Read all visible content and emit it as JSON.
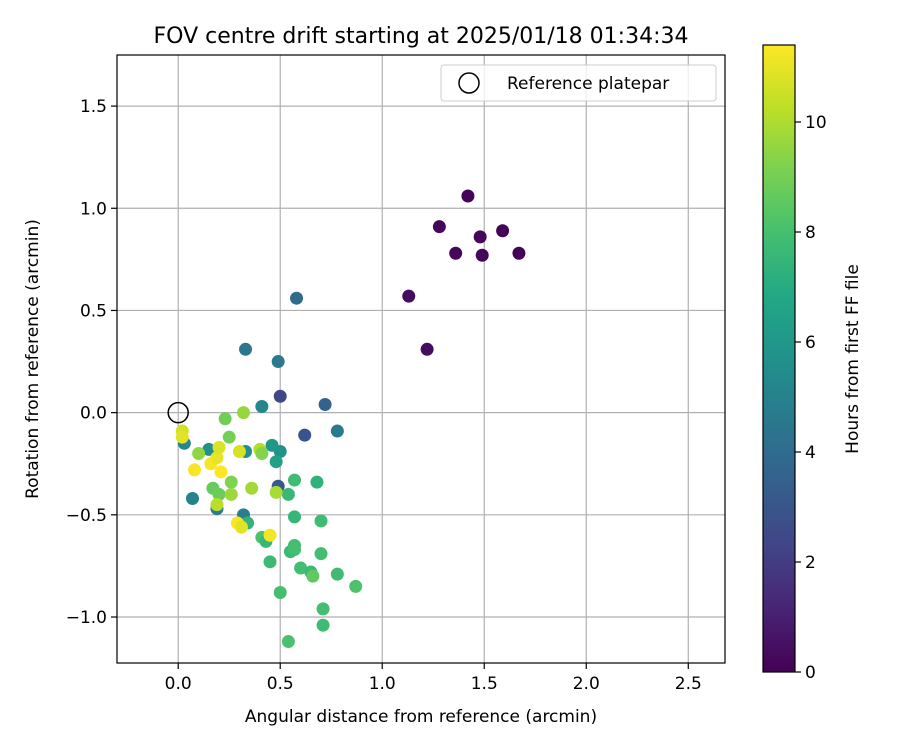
{
  "chart_data": {
    "type": "scatter",
    "title": "FOV centre drift starting at 2025/01/18 01:34:34",
    "xlabel": "Angular distance from reference (arcmin)",
    "ylabel": "Rotation from reference (arcmin)",
    "xlim": [
      -0.3,
      2.68
    ],
    "ylim": [
      -1.225,
      1.75
    ],
    "xticks": [
      0.0,
      0.5,
      1.0,
      1.5,
      2.0,
      2.5
    ],
    "xtick_labels": [
      "0.0",
      "0.5",
      "1.0",
      "1.5",
      "2.0",
      "2.5"
    ],
    "yticks": [
      -1.0,
      -0.5,
      0.0,
      0.5,
      1.0,
      1.5
    ],
    "ytick_labels": [
      "−1.0",
      "−0.5",
      "0.0",
      "0.5",
      "1.0",
      "1.5"
    ],
    "grid": true,
    "legend": {
      "placement": "upper right",
      "entries": [
        "Reference platepar"
      ]
    },
    "reference_point": {
      "x": 0.0,
      "y": 0.0
    },
    "colorbar": {
      "label": "Hours from first FF file",
      "colormap": "viridis",
      "range": [
        0,
        11.4
      ],
      "ticks": [
        0,
        2,
        4,
        6,
        8,
        10
      ],
      "tick_labels": [
        "0",
        "2",
        "4",
        "6",
        "8",
        "10"
      ]
    },
    "points": [
      {
        "x": 1.42,
        "y": 1.06,
        "h": 0.1
      },
      {
        "x": 1.28,
        "y": 0.91,
        "h": 0.2
      },
      {
        "x": 1.48,
        "y": 0.86,
        "h": 0.2
      },
      {
        "x": 1.59,
        "y": 0.89,
        "h": 0.1
      },
      {
        "x": 1.36,
        "y": 0.78,
        "h": 0.2
      },
      {
        "x": 1.49,
        "y": 0.77,
        "h": 0.2
      },
      {
        "x": 1.67,
        "y": 0.78,
        "h": 0.1
      },
      {
        "x": 1.13,
        "y": 0.57,
        "h": 0.4
      },
      {
        "x": 1.22,
        "y": 0.31,
        "h": 0.4
      },
      {
        "x": 0.58,
        "y": 0.56,
        "h": 3.9
      },
      {
        "x": 0.33,
        "y": 0.31,
        "h": 4.5
      },
      {
        "x": 0.49,
        "y": 0.25,
        "h": 4.6
      },
      {
        "x": 0.5,
        "y": 0.08,
        "h": 2.5
      },
      {
        "x": 0.41,
        "y": 0.03,
        "h": 5.2
      },
      {
        "x": 0.72,
        "y": 0.04,
        "h": 3.6
      },
      {
        "x": 0.62,
        "y": -0.11,
        "h": 2.9
      },
      {
        "x": 0.78,
        "y": -0.09,
        "h": 4.6
      },
      {
        "x": 0.03,
        "y": -0.15,
        "h": 5.2
      },
      {
        "x": 0.07,
        "y": -0.42,
        "h": 5.0
      },
      {
        "x": 0.15,
        "y": -0.18,
        "h": 5.6
      },
      {
        "x": 0.19,
        "y": -0.47,
        "h": 4.7
      },
      {
        "x": 0.32,
        "y": -0.5,
        "h": 4.9
      },
      {
        "x": 0.33,
        "y": -0.19,
        "h": 5.6
      },
      {
        "x": 0.49,
        "y": -0.36,
        "h": 3.2
      },
      {
        "x": 0.5,
        "y": -0.19,
        "h": 5.8
      },
      {
        "x": 0.46,
        "y": -0.16,
        "h": 6.0
      },
      {
        "x": 0.48,
        "y": -0.24,
        "h": 6.5
      },
      {
        "x": 0.57,
        "y": -0.33,
        "h": 7.8
      },
      {
        "x": 0.54,
        "y": -0.4,
        "h": 7.6
      },
      {
        "x": 0.68,
        "y": -0.34,
        "h": 7.3
      },
      {
        "x": 0.57,
        "y": -0.51,
        "h": 7.5
      },
      {
        "x": 0.7,
        "y": -0.53,
        "h": 7.8
      },
      {
        "x": 0.34,
        "y": -0.54,
        "h": 7.4
      },
      {
        "x": 0.41,
        "y": -0.61,
        "h": 8.2
      },
      {
        "x": 0.43,
        "y": -0.63,
        "h": 7.6
      },
      {
        "x": 0.45,
        "y": -0.73,
        "h": 7.7
      },
      {
        "x": 0.55,
        "y": -0.68,
        "h": 7.7
      },
      {
        "x": 0.57,
        "y": -0.65,
        "h": 7.9
      },
      {
        "x": 0.57,
        "y": -0.67,
        "h": 8.0
      },
      {
        "x": 0.6,
        "y": -0.76,
        "h": 7.9
      },
      {
        "x": 0.65,
        "y": -0.78,
        "h": 7.7
      },
      {
        "x": 0.66,
        "y": -0.8,
        "h": 8.6
      },
      {
        "x": 0.7,
        "y": -0.69,
        "h": 7.9
      },
      {
        "x": 0.78,
        "y": -0.79,
        "h": 7.8
      },
      {
        "x": 0.87,
        "y": -0.85,
        "h": 8.2
      },
      {
        "x": 0.5,
        "y": -0.88,
        "h": 8.0
      },
      {
        "x": 0.71,
        "y": -0.96,
        "h": 7.9
      },
      {
        "x": 0.71,
        "y": -1.04,
        "h": 7.8
      },
      {
        "x": 0.54,
        "y": -1.12,
        "h": 8.1
      },
      {
        "x": 0.23,
        "y": -0.03,
        "h": 8.9
      },
      {
        "x": 0.32,
        "y": 0.0,
        "h": 9.6
      },
      {
        "x": 0.25,
        "y": -0.12,
        "h": 9.0
      },
      {
        "x": 0.1,
        "y": -0.2,
        "h": 9.5
      },
      {
        "x": 0.17,
        "y": -0.37,
        "h": 8.7
      },
      {
        "x": 0.2,
        "y": -0.4,
        "h": 8.8
      },
      {
        "x": 0.26,
        "y": -0.34,
        "h": 9.2
      },
      {
        "x": 0.26,
        "y": -0.4,
        "h": 9.7
      },
      {
        "x": 0.36,
        "y": -0.37,
        "h": 9.8
      },
      {
        "x": 0.4,
        "y": -0.18,
        "h": 10.1
      },
      {
        "x": 0.41,
        "y": -0.2,
        "h": 9.3
      },
      {
        "x": 0.48,
        "y": -0.39,
        "h": 9.9
      },
      {
        "x": 0.19,
        "y": -0.45,
        "h": 10.2
      },
      {
        "x": 0.02,
        "y": -0.09,
        "h": 10.6
      },
      {
        "x": 0.02,
        "y": -0.12,
        "h": 10.9
      },
      {
        "x": 0.08,
        "y": -0.28,
        "h": 11.3
      },
      {
        "x": 0.16,
        "y": -0.25,
        "h": 11.2
      },
      {
        "x": 0.19,
        "y": -0.22,
        "h": 11.0
      },
      {
        "x": 0.2,
        "y": -0.17,
        "h": 10.8
      },
      {
        "x": 0.21,
        "y": -0.29,
        "h": 11.4
      },
      {
        "x": 0.3,
        "y": -0.19,
        "h": 10.7
      },
      {
        "x": 0.29,
        "y": -0.54,
        "h": 11.3
      },
      {
        "x": 0.31,
        "y": -0.56,
        "h": 10.9
      },
      {
        "x": 0.45,
        "y": -0.6,
        "h": 11.2
      }
    ]
  }
}
